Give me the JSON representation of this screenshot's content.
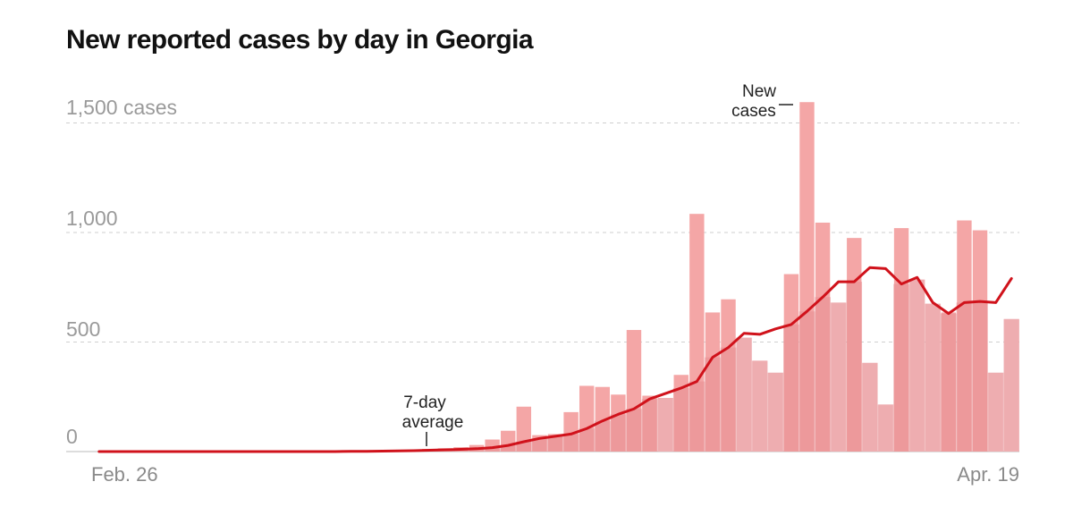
{
  "chart_data": {
    "type": "bar",
    "title": "New reported cases by day in Georgia",
    "xlabel": "",
    "ylabel": "cases",
    "ylim": [
      0,
      1600
    ],
    "y_ticks": [
      {
        "value": 1500,
        "label": "1,500 cases"
      },
      {
        "value": 1000,
        "label": "1,000"
      },
      {
        "value": 500,
        "label": "500"
      },
      {
        "value": 0,
        "label": "0"
      }
    ],
    "x_tick_labels": {
      "first": "Feb. 26",
      "last": "Apr. 19"
    },
    "start_date": "Feb. 26",
    "end_date": "Apr. 19",
    "grid": true,
    "series": [
      {
        "name": "New cases",
        "type": "bar",
        "color": "#f4a6a6",
        "values": [
          0,
          0,
          0,
          0,
          0,
          0,
          0,
          0,
          0,
          0,
          0,
          0,
          0,
          0,
          0,
          0,
          1,
          2,
          5,
          3,
          8,
          12,
          15,
          20,
          30,
          55,
          95,
          205,
          75,
          80,
          180,
          300,
          295,
          260,
          555,
          255,
          245,
          350,
          1085,
          635,
          695,
          520,
          415,
          360,
          810,
          1595,
          1045,
          680,
          975,
          405,
          215,
          1020,
          785,
          675,
          635,
          1055,
          1010,
          360,
          605
        ]
      },
      {
        "name": "7-day average",
        "type": "line",
        "color": "#d0121b",
        "values": [
          0,
          0,
          0,
          0,
          0,
          0,
          0,
          0,
          0,
          0,
          0,
          0,
          0,
          0,
          0,
          0,
          1,
          1,
          2,
          3,
          4,
          6,
          8,
          10,
          13,
          18,
          28,
          45,
          60,
          70,
          80,
          105,
          140,
          170,
          195,
          240,
          265,
          290,
          320,
          430,
          475,
          540,
          535,
          560,
          580,
          640,
          705,
          775,
          775,
          840,
          835,
          765,
          795,
          680,
          630,
          680,
          685,
          680,
          790
        ]
      }
    ],
    "annotations": {
      "new_cases_line1": "New",
      "new_cases_line2": "cases",
      "avg_line1": "7-day",
      "avg_line2": "average"
    }
  }
}
